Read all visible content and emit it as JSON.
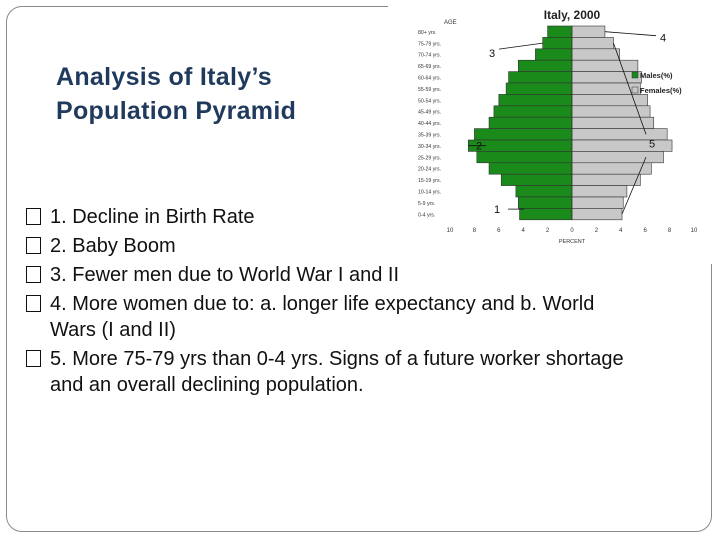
{
  "slide": {
    "title_line1": "Analysis of Italy’s",
    "title_line2": "Population Pyramid",
    "bullets": [
      {
        "text": "1. Decline in Birth Rate"
      },
      {
        "text": "2. Baby Boom"
      },
      {
        "text": "3. Fewer men due to World War I and II"
      },
      {
        "text": "4. More women due to: a. longer life expectancy and b. World Wars (I and II)"
      },
      {
        "text": "5. More 75-79 yrs than 0-4 yrs. Signs of a future worker shortage and an overall declining population."
      }
    ]
  },
  "colors": {
    "males": "#1a8a1a",
    "females": "#c8c8c8",
    "bar_border": "#333333",
    "title": "#1f3a5c"
  },
  "chart_data": {
    "type": "bar",
    "orientation": "horizontal-pyramid",
    "title": "Italy, 2000",
    "ylabel": "AGE",
    "xlabel": "PERCENT",
    "categories": [
      "80+ yrs.",
      "75-79 yrs.",
      "70-74 yrs.",
      "65-69 yrs.",
      "60-64 yrs.",
      "55-59 yrs.",
      "50-54 yrs.",
      "45-49 yrs.",
      "40-44 yrs.",
      "35-39 yrs.",
      "30-34 yrs.",
      "25-29 yrs.",
      "20-24 yrs.",
      "15-19 yrs.",
      "10-14 yrs.",
      "5-9 yrs.",
      "0-4 yrs."
    ],
    "series": [
      {
        "name": "Males(%)",
        "values": [
          2.0,
          2.4,
          3.0,
          4.4,
          5.2,
          5.4,
          6.0,
          6.4,
          6.8,
          8.0,
          8.5,
          7.8,
          6.8,
          5.8,
          4.6,
          4.4,
          4.3
        ]
      },
      {
        "name": "Females(%)",
        "values": [
          2.7,
          3.4,
          3.9,
          5.4,
          5.7,
          5.6,
          6.2,
          6.4,
          6.7,
          7.8,
          8.2,
          7.5,
          6.5,
          5.6,
          4.5,
          4.2,
          4.1
        ]
      }
    ],
    "xticks": [
      "10",
      "8",
      "6",
      "4",
      "2",
      "0",
      "2",
      "4",
      "6",
      "8",
      "10"
    ],
    "xlim": [
      -10,
      10
    ],
    "legend": "right",
    "annotations": [
      {
        "label": "1",
        "target": "0-4 yrs."
      },
      {
        "label": "2",
        "target": "30-34 yrs."
      },
      {
        "label": "3",
        "target": "75-79 yrs."
      },
      {
        "label": "4",
        "target": "80+ yrs."
      },
      {
        "label": "5",
        "target": "75-79 yrs. and 0-4 yrs."
      }
    ]
  }
}
